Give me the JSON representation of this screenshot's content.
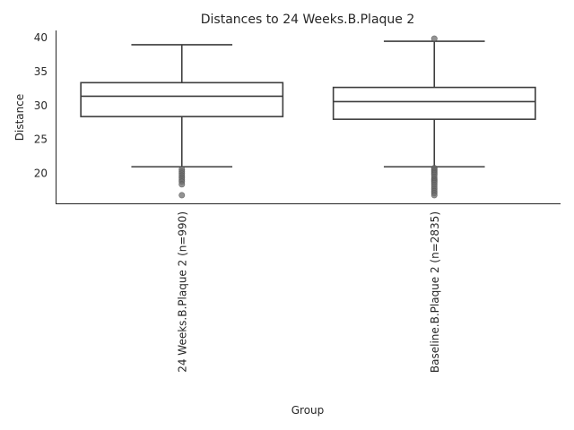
{
  "chart_data": {
    "type": "box",
    "title": "Distances to 24 Weeks.B.Plaque 2",
    "xlabel": "Group",
    "ylabel": "Distance",
    "ylim": [
      15.5,
      41
    ],
    "yticks": [
      20,
      25,
      30,
      35,
      40
    ],
    "grid": false,
    "legend": "none",
    "colors": {
      "box_edge": "#3d3d3d",
      "box_fill": "#ffffff",
      "flier": "#6e6e6e",
      "text": "#262626"
    },
    "categories": [
      "24 Weeks.B.Plaque 2 (n=990)",
      "Baseline.B.Plaque 2 (n=2835)"
    ],
    "boxes": [
      {
        "category": "24 Weeks.B.Plaque 2 (n=990)",
        "whisker_low": 20.9,
        "q1": 28.3,
        "median": 31.3,
        "q3": 33.3,
        "whisker_high": 38.9,
        "fliers": [
          20.5,
          20.2,
          19.9,
          19.6,
          19.3,
          19.0,
          18.7,
          18.3,
          16.7
        ]
      },
      {
        "category": "Baseline.B.Plaque 2 (n=2835)",
        "whisker_low": 20.9,
        "q1": 27.9,
        "median": 30.5,
        "q3": 32.6,
        "whisker_high": 39.4,
        "fliers": [
          39.8,
          20.7,
          20.5,
          20.3,
          20.1,
          19.9,
          19.7,
          19.4,
          19.1,
          18.9,
          18.7,
          18.5,
          18.2,
          17.9,
          17.6,
          17.3,
          17.0,
          16.7
        ]
      }
    ]
  }
}
